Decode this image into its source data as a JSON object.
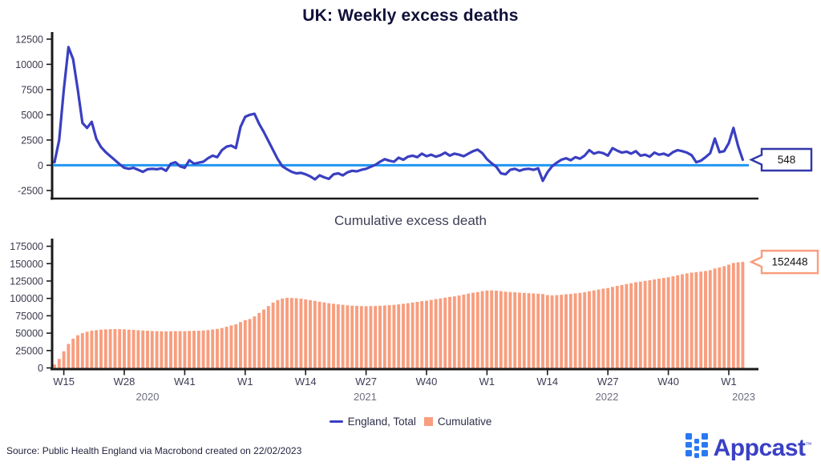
{
  "title": "UK: Weekly excess deaths",
  "subtitle": "Cumulative excess death",
  "source": "Source: Public Health England via Macrobond created on 22/02/2023",
  "legend": {
    "series1": "England, Total",
    "series2": "Cumulative"
  },
  "logo": {
    "text": "Appcast",
    "tm": "™"
  },
  "colors": {
    "line": "#3a3fc1",
    "zero_line": "#2196f3",
    "bar": "#f89e7e",
    "axis": "#1a1a1a",
    "ytick_label": "#3a3a4e",
    "xtick_label": "#3c3c55",
    "year_label": "#6e6e80",
    "callout_line_border": "#3036a8",
    "callout_bar_border": "#f89e7e",
    "callout_text": "#111111",
    "logo_icon": "#2979f2",
    "logo_text": "#3a41c4"
  },
  "chart_data": [
    {
      "type": "line",
      "title": "UK: Weekly excess deaths",
      "series_name": "England, Total",
      "x_unit": "weeks W13-2020 to W4-2023",
      "ylim": [
        -3300,
        13200
      ],
      "yticks": [
        -2500,
        0,
        2500,
        5000,
        7500,
        10000,
        12500
      ],
      "zero_line": true,
      "latest_label": "548",
      "values": [
        300,
        2500,
        7500,
        11700,
        10500,
        7500,
        4200,
        3700,
        4300,
        2600,
        1800,
        1300,
        900,
        500,
        100,
        -250,
        -350,
        -250,
        -450,
        -650,
        -400,
        -350,
        -400,
        -300,
        -550,
        150,
        300,
        -100,
        -250,
        500,
        150,
        250,
        350,
        700,
        950,
        800,
        1500,
        1850,
        1950,
        1700,
        3800,
        4800,
        5000,
        5100,
        4100,
        3300,
        2400,
        1500,
        600,
        -100,
        -400,
        -650,
        -800,
        -750,
        -900,
        -1100,
        -1400,
        -1000,
        -1200,
        -1350,
        -900,
        -800,
        -1000,
        -700,
        -550,
        -600,
        -450,
        -350,
        -150,
        50,
        350,
        600,
        450,
        350,
        750,
        550,
        850,
        950,
        800,
        1150,
        900,
        1050,
        850,
        1000,
        1250,
        950,
        1150,
        1050,
        900,
        1150,
        1400,
        1550,
        1200,
        600,
        200,
        -150,
        -800,
        -900,
        -450,
        -350,
        -550,
        -400,
        -350,
        -450,
        -300,
        -1550,
        -700,
        -100,
        250,
        550,
        700,
        500,
        800,
        650,
        950,
        1500,
        1150,
        1300,
        1200,
        950,
        1700,
        1450,
        1250,
        1350,
        1150,
        1400,
        950,
        1050,
        850,
        1250,
        1050,
        1150,
        950,
        1300,
        1500,
        1400,
        1250,
        1000,
        300,
        450,
        800,
        1200,
        2650,
        1300,
        1400,
        2200,
        3700,
        1900,
        548
      ]
    },
    {
      "type": "bar",
      "title": "Cumulative excess death",
      "series_name": "Cumulative",
      "x_unit": "weeks W13-2020 to W4-2023",
      "ylim": [
        0,
        186000
      ],
      "yticks": [
        0,
        25000,
        50000,
        75000,
        100000,
        125000,
        150000,
        175000
      ],
      "latest_label": "152448",
      "xticks": [
        {
          "index": 2,
          "label": "W15"
        },
        {
          "index": 15,
          "label": "W28"
        },
        {
          "index": 28,
          "label": "W41"
        },
        {
          "index": 41,
          "label": "W1"
        },
        {
          "index": 54,
          "label": "W14"
        },
        {
          "index": 67,
          "label": "W27"
        },
        {
          "index": 80,
          "label": "W40"
        },
        {
          "index": 93,
          "label": "W1"
        },
        {
          "index": 106,
          "label": "W14"
        },
        {
          "index": 119,
          "label": "W27"
        },
        {
          "index": 132,
          "label": "W40"
        },
        {
          "index": 145,
          "label": "W1"
        }
      ],
      "year_labels": [
        {
          "index": 20,
          "label": "2020"
        },
        {
          "index": 66.8,
          "label": "2021"
        },
        {
          "index": 118.8,
          "label": "2022"
        },
        {
          "index": 148.2,
          "label": "2023"
        }
      ],
      "values": [
        5000,
        13000,
        24000,
        34500,
        42000,
        47000,
        50000,
        52000,
        53500,
        54400,
        55000,
        55400,
        55700,
        55900,
        55800,
        55500,
        55100,
        54700,
        54300,
        53800,
        53400,
        53100,
        52900,
        52700,
        52600,
        52700,
        52900,
        53000,
        52900,
        53200,
        53400,
        53600,
        53900,
        54500,
        55300,
        56100,
        57500,
        59200,
        61100,
        62800,
        66000,
        68700,
        70400,
        74200,
        79000,
        84000,
        89000,
        94000,
        97500,
        99900,
        100900,
        100700,
        100300,
        99600,
        98600,
        97500,
        96400,
        95200,
        94100,
        93100,
        92300,
        91400,
        90700,
        90100,
        89600,
        89200,
        88900,
        88800,
        88900,
        89100,
        89400,
        89800,
        90300,
        90800,
        91500,
        92300,
        93100,
        94100,
        95000,
        96000,
        96800,
        97800,
        99000,
        100000,
        101100,
        102100,
        103000,
        104100,
        105500,
        107000,
        108200,
        109100,
        110500,
        111200,
        111500,
        111300,
        110500,
        109600,
        109200,
        108800,
        108300,
        107900,
        107500,
        107100,
        106800,
        106300,
        104800,
        104400,
        104700,
        105200,
        105900,
        106400,
        107200,
        107900,
        108800,
        110300,
        111500,
        112800,
        114000,
        114900,
        116600,
        118100,
        119300,
        120700,
        121800,
        123200,
        124200,
        125200,
        126100,
        127300,
        128400,
        129500,
        130500,
        131800,
        133300,
        134700,
        135900,
        137100,
        137900,
        138500,
        139400,
        140600,
        143000,
        144400,
        146400,
        148600,
        151000,
        151900,
        152448
      ]
    }
  ]
}
